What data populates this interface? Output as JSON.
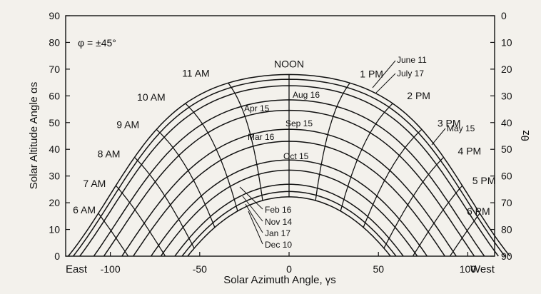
{
  "chart_data": {
    "type": "line",
    "latitude_label": "φ = ±45°",
    "xlabel": "Solar Azimuth Angle, γs",
    "ylabel": "Solar Altitude Angle  αs",
    "y2label": "θz",
    "xlim": [
      -125,
      115
    ],
    "ylim": [
      0,
      90
    ],
    "x_ticks": [
      -100,
      -50,
      0,
      50,
      100
    ],
    "y_ticks": [
      0,
      10,
      20,
      30,
      40,
      50,
      60,
      70,
      80,
      90
    ],
    "y2_ticks": [
      90,
      80,
      70,
      60,
      50,
      40,
      30,
      20,
      10,
      0
    ],
    "x_end_labels": {
      "left": "East",
      "right": "West"
    },
    "grid": false,
    "latitude_deg": 45,
    "date_series": [
      {
        "name": "June 11",
        "declination": 23.0
      },
      {
        "name": "July 17",
        "declination": 21.2
      },
      {
        "name": "May 15",
        "declination": 18.8
      },
      {
        "name": "Aug 16",
        "declination": 13.5
      },
      {
        "name": "Apr 15",
        "declination": 9.6
      },
      {
        "name": "Sep 15",
        "declination": 2.5
      },
      {
        "name": "Mar 16",
        "declination": -2.0
      },
      {
        "name": "Oct 15",
        "declination": -9.0
      },
      {
        "name": "Feb 16",
        "declination": -12.8
      },
      {
        "name": "Nov 14",
        "declination": -18.1
      },
      {
        "name": "Jan 17",
        "declination": -20.8
      },
      {
        "name": "Dec 10",
        "declination": -22.8
      }
    ],
    "hour_lines": [
      {
        "name": "6 AM",
        "hour_angle": -90
      },
      {
        "name": "7 AM",
        "hour_angle": -75
      },
      {
        "name": "8 AM",
        "hour_angle": -60
      },
      {
        "name": "9 AM",
        "hour_angle": -45
      },
      {
        "name": "10 AM",
        "hour_angle": -30
      },
      {
        "name": "11 AM",
        "hour_angle": -15
      },
      {
        "name": "NOON",
        "hour_angle": 0
      },
      {
        "name": "1 PM",
        "hour_angle": 15
      },
      {
        "name": "2 PM",
        "hour_angle": 30
      },
      {
        "name": "3 PM",
        "hour_angle": 45
      },
      {
        "name": "4 PM",
        "hour_angle": 60
      },
      {
        "name": "5 PM",
        "hour_angle": 75
      },
      {
        "name": "6 PM",
        "hour_angle": 90
      }
    ]
  }
}
